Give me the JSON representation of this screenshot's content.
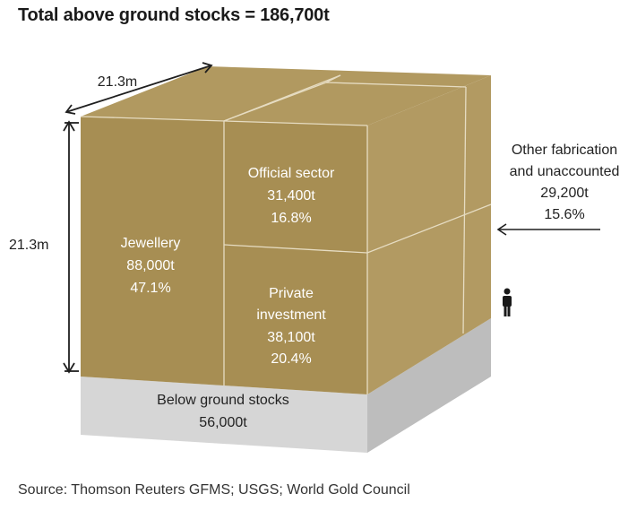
{
  "title": "Total above ground stocks = 186,700t",
  "source": "Source: Thomson Reuters GFMS; USGS; World Gold Council",
  "colors": {
    "gold_front": "#a78e53",
    "gold_top": "#b19960",
    "gold_side": "#b29a62",
    "edge_line": "#e6dcc2",
    "base_front": "#d6d6d6",
    "base_side": "#bdbdbd",
    "arrow": "#1f1f1f"
  },
  "dimensions": {
    "width_label": "21.3m",
    "height_label": "21.3m"
  },
  "segments": {
    "jewellery": {
      "name": "Jewellery",
      "tonnes": "88,000t",
      "percent": "47.1%"
    },
    "official": {
      "name": "Official sector",
      "tonnes": "31,400t",
      "percent": "16.8%"
    },
    "private": {
      "name_line1": "Private",
      "name_line2": "investment",
      "tonnes": "38,100t",
      "percent": "20.4%"
    },
    "other": {
      "name_line1": "Other fabrication",
      "name_line2": "and unaccounted",
      "tonnes": "29,200t",
      "percent": "15.6%"
    }
  },
  "below_ground": {
    "name": "Below ground stocks",
    "tonnes": "56,000t"
  },
  "person_icon": "person-icon"
}
